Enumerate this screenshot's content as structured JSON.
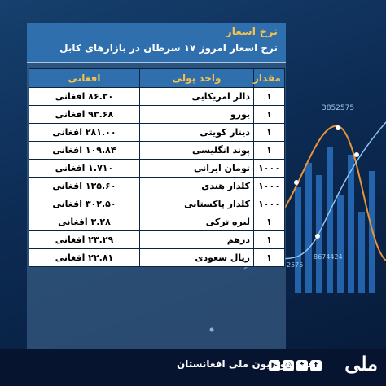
{
  "header": {
    "title": "نرخ اسعار",
    "subtitle": "نرخ اسعار امروز ۱۷ سرطان در بازارهای کابل"
  },
  "table": {
    "columns": [
      "افغانی",
      "واحد پولی",
      "مقدار"
    ],
    "rows": [
      {
        "afghani": "۸۶.۳۰  افغانی",
        "currency": "دالر امریکایی",
        "qty": "۱"
      },
      {
        "afghani": "۹۳.۶۸  افغانی",
        "currency": "یورو",
        "qty": "۱"
      },
      {
        "afghani": "۲۸۱.۰۰  افغانی",
        "currency": "دینار کویتی",
        "qty": "۱"
      },
      {
        "afghani": "۱۰۹.۸۴  افغانی",
        "currency": "پوند انگلیسی",
        "qty": "۱"
      },
      {
        "afghani": "۱.۷۱۰  افغانی",
        "currency": "تومان ایرانی",
        "qty": "۱۰۰۰"
      },
      {
        "afghani": "۱۳۵.۶۰  افغانی",
        "currency": "کلدار هندی",
        "qty": "۱۰۰۰"
      },
      {
        "afghani": "۳۰۲.۵۰  افغانی",
        "currency": "کلدار پاکستانی",
        "qty": "۱۰۰۰"
      },
      {
        "afghani": "۳.۲۸  افغانی",
        "currency": "لیره ترکی",
        "qty": "۱"
      },
      {
        "afghani": "۲۳.۲۹  افغانی",
        "currency": "درهم",
        "qty": "۱"
      },
      {
        "afghani": "۲۲.۸۱  افغانی",
        "currency": "ریال سعودی",
        "qty": "۱"
      }
    ]
  },
  "footer": {
    "station": "رادیو تلویزیون ملی افغانستان",
    "logo": "ملی",
    "social_icons": [
      "youtube-icon",
      "instagram-icon",
      "twitter-icon",
      "facebook-icon"
    ],
    "social_glyphs": [
      "▶",
      "◎",
      "t",
      "f"
    ]
  },
  "background_labels": [
    "3852575",
    "8674424",
    "2575"
  ],
  "colors": {
    "accent": "#f3c24a",
    "header_blue": "#2f6fae",
    "footer": "#061430"
  }
}
